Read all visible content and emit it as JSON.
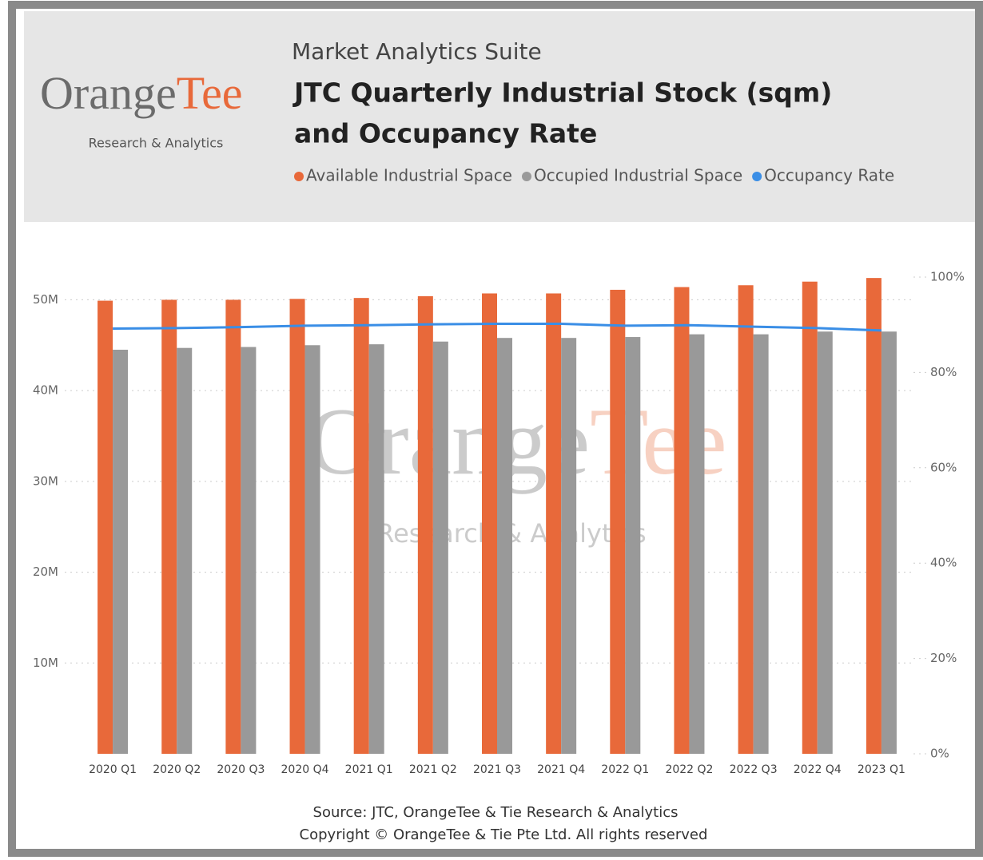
{
  "logo": {
    "name_part1": "Orange",
    "name_part2": "Tee",
    "tagline": "Research & Analytics"
  },
  "suite": "Market Analytics Suite",
  "source": "Source: JTC, OrangeTee & Tie Research & Analytics",
  "copyright": "Copyright © OrangeTee & Tie Pte Ltd. All rights reserved",
  "chart_data": {
    "type": "bar_line",
    "title": [
      "JTC Quarterly Industrial Stock (sqm)",
      "and Occupancy Rate"
    ],
    "categories": [
      "2020 Q1",
      "2020 Q2",
      "2020 Q3",
      "2020 Q4",
      "2021 Q1",
      "2021 Q2",
      "2021 Q3",
      "2021 Q4",
      "2022 Q1",
      "2022 Q2",
      "2022 Q3",
      "2022 Q4",
      "2023 Q1"
    ],
    "series": [
      {
        "name": "Available Industrial Space",
        "color": "#e8693a",
        "type": "bar",
        "values": [
          49900000,
          50000000,
          50000000,
          50100000,
          50200000,
          50400000,
          50700000,
          50700000,
          51100000,
          51400000,
          51600000,
          52000000,
          52400000
        ]
      },
      {
        "name": "Occupied Industrial Space",
        "color": "#999999",
        "type": "bar",
        "values": [
          44500000,
          44700000,
          44800000,
          45000000,
          45100000,
          45400000,
          45800000,
          45800000,
          45900000,
          46200000,
          46200000,
          46500000,
          46500000
        ]
      },
      {
        "name": "Occupancy Rate",
        "color": "#3a8ee6",
        "type": "line",
        "axis": "y2",
        "values": [
          89.2,
          89.3,
          89.5,
          89.8,
          89.9,
          90.1,
          90.2,
          90.2,
          89.8,
          89.9,
          89.6,
          89.3,
          88.8
        ]
      }
    ],
    "ylim": [
      0,
      52500000
    ],
    "yticks": [
      {
        "value": 10000000,
        "label": "10M"
      },
      {
        "value": 20000000,
        "label": "20M"
      },
      {
        "value": 30000000,
        "label": "30M"
      },
      {
        "value": 40000000,
        "label": "40M"
      },
      {
        "value": 50000000,
        "label": "50M"
      }
    ],
    "y2lim": [
      0,
      100
    ],
    "y2ticks": [
      {
        "value": 0,
        "label": "0%"
      },
      {
        "value": 20,
        "label": "20%"
      },
      {
        "value": 40,
        "label": "40%"
      },
      {
        "value": 60,
        "label": "60%"
      },
      {
        "value": 80,
        "label": "80%"
      },
      {
        "value": 100,
        "label": "100%"
      }
    ],
    "grid": true
  }
}
